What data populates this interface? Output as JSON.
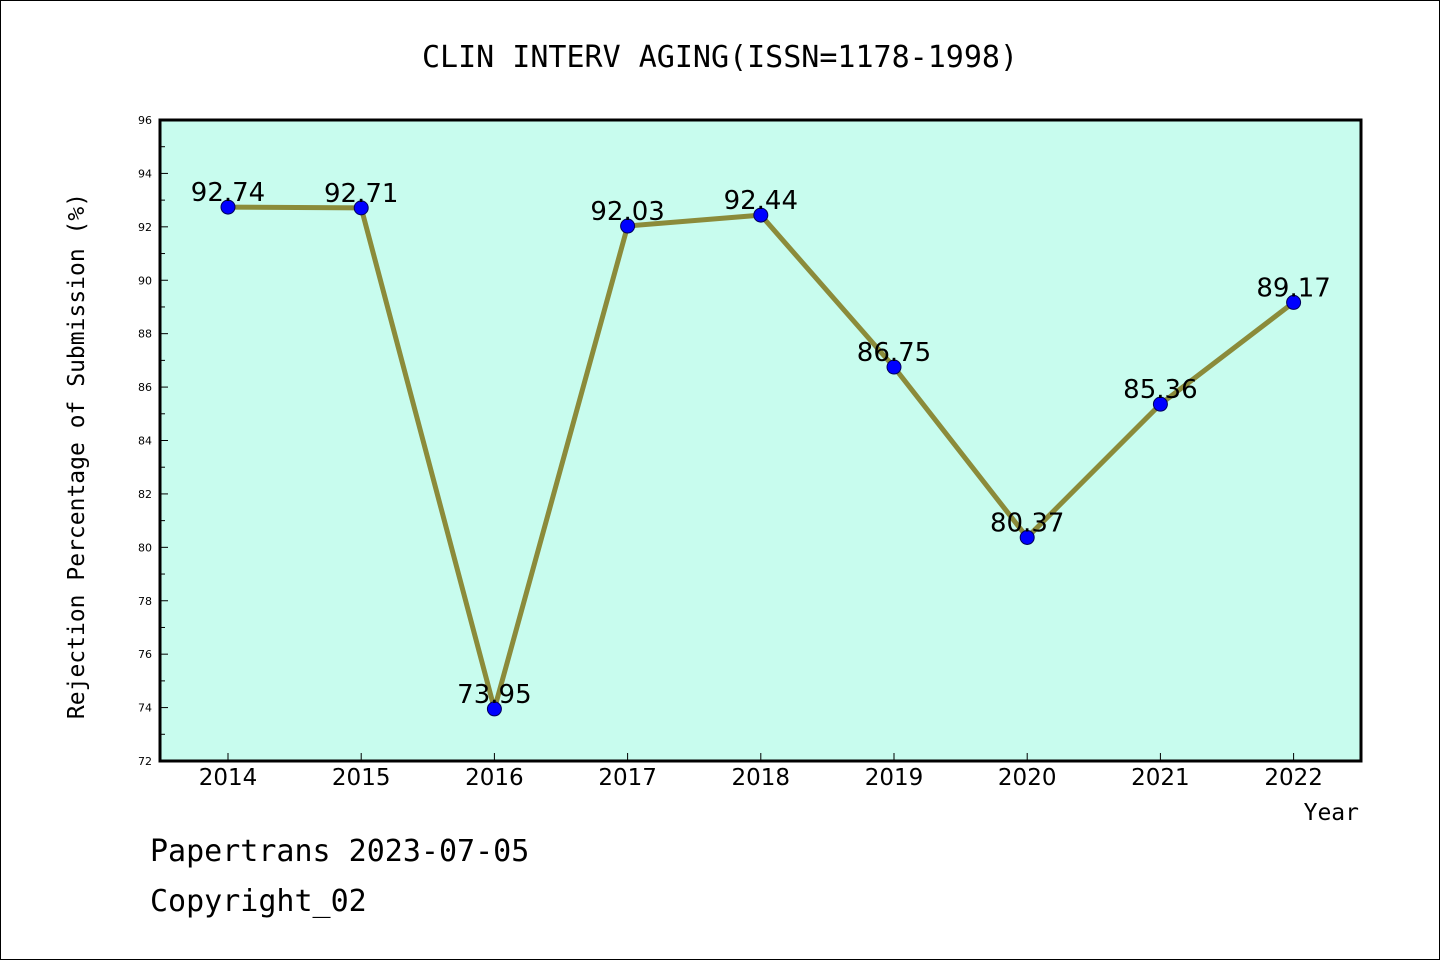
{
  "chart_data": {
    "type": "line",
    "title": "CLIN INTERV AGING(ISSN=1178-1998)",
    "xlabel": "Year",
    "ylabel": "Rejection Percentage of Submission (%)",
    "ylim": [
      72,
      96
    ],
    "yticks": [
      "72",
      "74",
      "76",
      "78",
      "80",
      "82",
      "84",
      "86",
      "88",
      "90",
      "92",
      "94",
      "96"
    ],
    "categories": [
      "2014",
      "2015",
      "2016",
      "2017",
      "2018",
      "2019",
      "2020",
      "2021",
      "2022"
    ],
    "values": [
      92.74,
      92.71,
      73.95,
      92.03,
      92.44,
      86.75,
      80.37,
      85.36,
      89.17
    ],
    "data_labels": [
      "92.74",
      "92.71",
      "73.95",
      "92.03",
      "92.44",
      "86.75",
      "80.37",
      "85.36",
      "89.17"
    ],
    "grid": false,
    "legend": "none",
    "colors": {
      "plot_background": "#c8fcee",
      "line": "#8b8b3a",
      "marker": "#0000ff"
    }
  },
  "footer": {
    "line1": "Papertrans 2023-07-05",
    "line2": "Copyright_02"
  }
}
